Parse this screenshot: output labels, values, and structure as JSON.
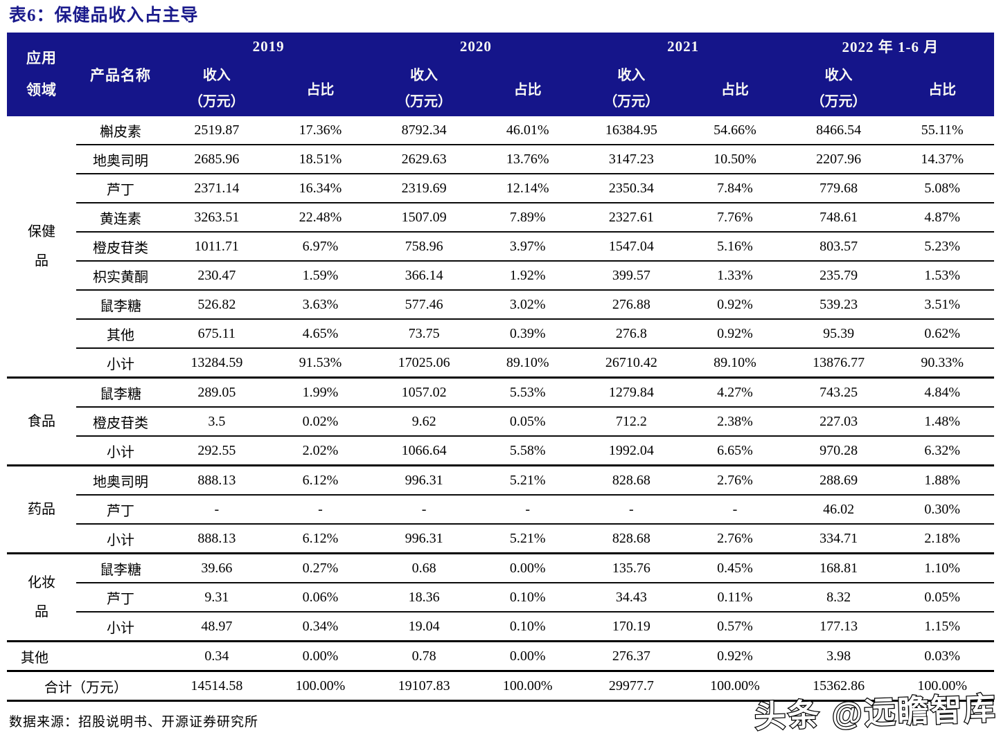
{
  "title": "表6：保健品收入占主导",
  "colors": {
    "header_bg": "#15158A",
    "title_text": "#1B1B8C",
    "rule_line": "#000000"
  },
  "watermark": "头条 @远瞻智库",
  "footer": {
    "source": "数据来源：招股说明书、开源证券研究所"
  },
  "table": {
    "col1_header": [
      "应用",
      "领域"
    ],
    "col2_header": "产品名称",
    "year_headers": [
      "2019",
      "2020",
      "2021",
      "2022 年 1-6 月"
    ],
    "income_header": [
      "收入",
      "（万元）"
    ],
    "share_header": "占比",
    "groups": [
      {
        "label": "保健品",
        "rows": [
          [
            "槲皮素",
            "2519.87",
            "17.36%",
            "8792.34",
            "46.01%",
            "16384.95",
            "54.66%",
            "8466.54",
            "55.11%"
          ],
          [
            "地奥司明",
            "2685.96",
            "18.51%",
            "2629.63",
            "13.76%",
            "3147.23",
            "10.50%",
            "2207.96",
            "14.37%"
          ],
          [
            "芦丁",
            "2371.14",
            "16.34%",
            "2319.69",
            "12.14%",
            "2350.34",
            "7.84%",
            "779.68",
            "5.08%"
          ],
          [
            "黄连素",
            "3263.51",
            "22.48%",
            "1507.09",
            "7.89%",
            "2327.61",
            "7.76%",
            "748.61",
            "4.87%"
          ],
          [
            "橙皮苷类",
            "1011.71",
            "6.97%",
            "758.96",
            "3.97%",
            "1547.04",
            "5.16%",
            "803.57",
            "5.23%"
          ],
          [
            "枳实黄酮",
            "230.47",
            "1.59%",
            "366.14",
            "1.92%",
            "399.57",
            "1.33%",
            "235.79",
            "1.53%"
          ],
          [
            "鼠李糖",
            "526.82",
            "3.63%",
            "577.46",
            "3.02%",
            "276.88",
            "0.92%",
            "539.23",
            "3.51%"
          ],
          [
            "其他",
            "675.11",
            "4.65%",
            "73.75",
            "0.39%",
            "276.8",
            "0.92%",
            "95.39",
            "0.62%"
          ],
          [
            "小计",
            "13284.59",
            "91.53%",
            "17025.06",
            "89.10%",
            "26710.42",
            "89.10%",
            "13876.77",
            "90.33%"
          ]
        ]
      },
      {
        "label": "食品",
        "rows": [
          [
            "鼠李糖",
            "289.05",
            "1.99%",
            "1057.02",
            "5.53%",
            "1279.84",
            "4.27%",
            "743.25",
            "4.84%"
          ],
          [
            "橙皮苷类",
            "3.5",
            "0.02%",
            "9.62",
            "0.05%",
            "712.2",
            "2.38%",
            "227.03",
            "1.48%"
          ],
          [
            "小计",
            "292.55",
            "2.02%",
            "1066.64",
            "5.58%",
            "1992.04",
            "6.65%",
            "970.28",
            "6.32%"
          ]
        ]
      },
      {
        "label": "药品",
        "rows": [
          [
            "地奥司明",
            "888.13",
            "6.12%",
            "996.31",
            "5.21%",
            "828.68",
            "2.76%",
            "288.69",
            "1.88%"
          ],
          [
            "芦丁",
            "-",
            "-",
            "-",
            "-",
            "-",
            "-",
            "46.02",
            "0.30%"
          ],
          [
            "小计",
            "888.13",
            "6.12%",
            "996.31",
            "5.21%",
            "828.68",
            "2.76%",
            "334.71",
            "2.18%"
          ]
        ]
      },
      {
        "label": "化妆品",
        "rows": [
          [
            "鼠李糖",
            "39.66",
            "0.27%",
            "0.68",
            "0.00%",
            "135.76",
            "0.45%",
            "168.81",
            "1.10%"
          ],
          [
            "芦丁",
            "9.31",
            "0.06%",
            "18.36",
            "0.10%",
            "34.43",
            "0.11%",
            "8.32",
            "0.05%"
          ],
          [
            "小计",
            "48.97",
            "0.34%",
            "19.04",
            "0.10%",
            "170.19",
            "0.57%",
            "177.13",
            "1.15%"
          ]
        ]
      },
      {
        "label": "其他",
        "single": true,
        "rows": [
          [
            "",
            "0.34",
            "0.00%",
            "0.78",
            "0.00%",
            "276.37",
            "0.92%",
            "3.98",
            "0.03%"
          ]
        ]
      },
      {
        "label": "合计（万元）",
        "total": true,
        "rows": [
          [
            "",
            "14514.58",
            "100.00%",
            "19107.83",
            "100.00%",
            "29977.7",
            "100.00%",
            "15362.86",
            "100.00%"
          ]
        ]
      }
    ]
  }
}
